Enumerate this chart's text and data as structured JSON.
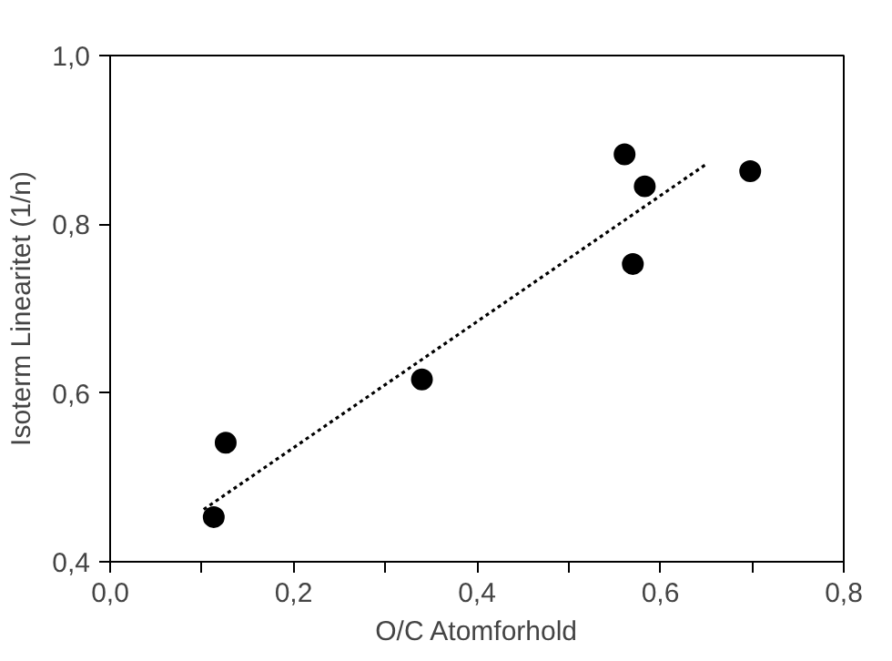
{
  "chart_data": {
    "type": "scatter",
    "xlabel": "O/C Atomforhold",
    "ylabel": "Isoterm Linearitet (1/n)",
    "xlim": [
      0,
      0.8
    ],
    "ylim": [
      0.4,
      1.0
    ],
    "xticks": [
      {
        "value": 0,
        "label": "0,0"
      },
      {
        "value": 0.1,
        "label": null
      },
      {
        "value": 0.2,
        "label": "0,2"
      },
      {
        "value": 0.3,
        "label": null
      },
      {
        "value": 0.4,
        "label": "0,4"
      },
      {
        "value": 0.5,
        "label": null
      },
      {
        "value": 0.6,
        "label": "0,6"
      },
      {
        "value": 0.7,
        "label": null
      },
      {
        "value": 0.8,
        "label": "0,8"
      }
    ],
    "yticks": [
      {
        "value": 0.4,
        "label": "0,4"
      },
      {
        "value": 0.6,
        "label": "0,6"
      },
      {
        "value": 0.8,
        "label": "0,8"
      },
      {
        "value": 1.0,
        "label": "1,0"
      }
    ],
    "grid": false,
    "marker": "circle",
    "series": [
      {
        "color": "#000000",
        "x": [
          0.113,
          0.126,
          0.34,
          0.561,
          0.583,
          0.57,
          0.698
        ],
        "values": [
          0.453,
          0.541,
          0.616,
          0.883,
          0.845,
          0.753,
          0.863
        ]
      },
      {
        "type": "line",
        "color": "#000000",
        "line_style": "dotted",
        "marker": "none",
        "x": [
          0.102,
          0.651
        ],
        "values": [
          0.462,
          0.872
        ]
      }
    ]
  }
}
